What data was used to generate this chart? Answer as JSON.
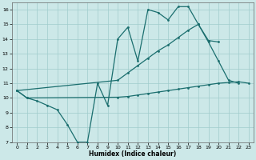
{
  "xlabel": "Humidex (Indice chaleur)",
  "background_color": "#cce8e8",
  "line_color": "#1a6e6e",
  "grid_color": "#a0cccc",
  "xlim": [
    -0.5,
    23.5
  ],
  "ylim": [
    7,
    16.5
  ],
  "xticks": [
    0,
    1,
    2,
    3,
    4,
    5,
    6,
    7,
    8,
    9,
    10,
    11,
    12,
    13,
    14,
    15,
    16,
    17,
    18,
    19,
    20,
    21,
    22,
    23
  ],
  "yticks": [
    7,
    8,
    9,
    10,
    11,
    12,
    13,
    14,
    15,
    16
  ],
  "line1_x": [
    0,
    1,
    2,
    3,
    4,
    5,
    6,
    7,
    8,
    9,
    10,
    11,
    12,
    13,
    14,
    15,
    16,
    17,
    18,
    19,
    20,
    21,
    22
  ],
  "line1_y": [
    10.5,
    10.0,
    9.8,
    9.5,
    9.2,
    8.2,
    7.0,
    7.0,
    11.0,
    9.5,
    14.0,
    14.8,
    12.5,
    16.0,
    15.8,
    15.3,
    16.2,
    16.2,
    15.0,
    13.8,
    12.5,
    11.2,
    11.0
  ],
  "line2_x": [
    0,
    1,
    10,
    11,
    12,
    13,
    14,
    15,
    16,
    17,
    18,
    19,
    20,
    21,
    22,
    23
  ],
  "line2_y": [
    10.5,
    10.0,
    10.05,
    10.1,
    10.2,
    10.3,
    10.4,
    10.5,
    10.6,
    10.7,
    10.8,
    10.9,
    11.0,
    11.05,
    11.1,
    11.0
  ],
  "line3_x": [
    0,
    10,
    11,
    12,
    13,
    14,
    15,
    16,
    17,
    18,
    19,
    20
  ],
  "line3_y": [
    10.5,
    11.2,
    11.7,
    12.2,
    12.7,
    13.2,
    13.6,
    14.1,
    14.6,
    15.0,
    13.9,
    13.8
  ]
}
